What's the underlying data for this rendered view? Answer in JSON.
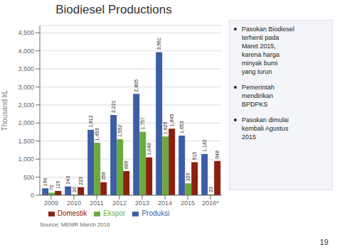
{
  "chart_data": {
    "type": "bar",
    "title": "Biodiesel Productions",
    "categories": [
      "2009",
      "2010",
      "2011",
      "2012",
      "2013",
      "2014",
      "2015",
      "2016*"
    ],
    "series": [
      {
        "name": "Produksi",
        "color": "#3B5EA6",
        "values": [
          190,
          243,
          1812,
          2221,
          2805,
          3961,
          1653,
          1142
        ],
        "value_labels": [
          "190",
          "243",
          "1,812",
          "2,221",
          "2,805",
          "3,961",
          "1,653",
          "1,142"
        ]
      },
      {
        "name": "Ekspor",
        "color": "#6AAB3C",
        "values": [
          70,
          20,
          1453,
          1552,
          1757,
          1629,
          329,
          23
        ],
        "value_labels": [
          "70",
          "20",
          "1,453",
          "1,552",
          "1,757",
          "1,629",
          "329",
          "23"
        ]
      },
      {
        "name": "Domestik",
        "color": "#8B2010",
        "values": [
          119,
          223,
          359,
          669,
          1048,
          1845,
          915,
          948
        ],
        "value_labels": [
          "119",
          "223",
          "359",
          "669",
          "1,048",
          "1,845",
          "915",
          "948"
        ]
      }
    ],
    "ylabel": "Thousand kL",
    "ylim": [
      0,
      4700
    ],
    "yticks": [
      0,
      500,
      {
        "value": 1000,
        "label": "1,000"
      },
      {
        "value": 1500,
        "label": "1,500"
      },
      {
        "value": 2000,
        "label": "2,000"
      },
      {
        "value": 2500,
        "label": "2,500"
      },
      {
        "value": 3000,
        "label": "3,000"
      },
      {
        "value": 3500,
        "label": "3,500"
      },
      {
        "value": 4000,
        "label": "4,000"
      },
      {
        "value": 4500,
        "label": "4,500"
      }
    ],
    "grid": true,
    "legend": "bottom",
    "data_labels": true,
    "annotations": [
      "Pasokan Biodiesel\nterhenti pada\nMaret 2015,\nkarena harga\nminyak bumi\nyang turun",
      "Pemerintah\nmendirikan\nBPDPKS",
      "Pasokan dimulai\nkembali Agustus\n2015",
      "Source: MEMR March 2016",
      "19"
    ]
  }
}
